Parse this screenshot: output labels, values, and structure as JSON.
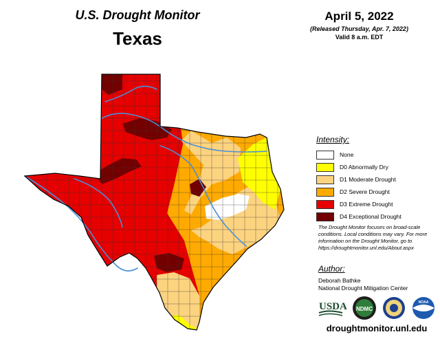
{
  "header": {
    "subtitle": "U.S. Drought Monitor",
    "region": "Texas"
  },
  "date": {
    "main": "April 5, 2022",
    "released": "(Released Thursday, Apr. 7, 2022)",
    "valid": "Valid 8 a.m. EDT"
  },
  "legend": {
    "title": "Intensity:",
    "items": [
      {
        "label": "None",
        "color": "#ffffff"
      },
      {
        "label": "D0 Abnormally Dry",
        "color": "#ffff00"
      },
      {
        "label": "D1 Moderate Drought",
        "color": "#fcd37f"
      },
      {
        "label": "D2 Severe Drought",
        "color": "#ffaa00"
      },
      {
        "label": "D3 Extreme Drought",
        "color": "#e60000"
      },
      {
        "label": "D4 Exceptional Drought",
        "color": "#730000"
      }
    ]
  },
  "note": "The Drought Monitor focuses on broad-scale conditions. Local conditions may vary. For more information on the Drought Monitor, go to https://droughtmonitor.unl.edu/About.aspx",
  "author": {
    "title": "Author:",
    "name": "Deborah Bathke",
    "org": "National Drought Mitigation Center"
  },
  "logos": {
    "usda": "USDA",
    "ndmc": "NDMC",
    "noaa": "NOAA"
  },
  "url": "droughtmonitor.unl.edu",
  "colors": {
    "river": "#4a8fd8",
    "county_line": "#333333"
  }
}
